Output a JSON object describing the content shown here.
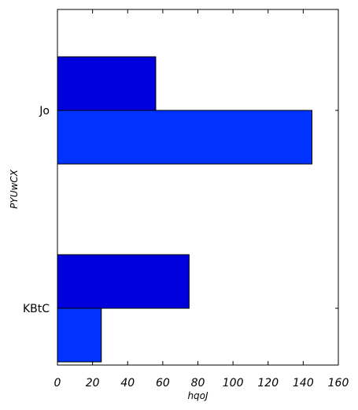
{
  "chart_data": {
    "type": "bar",
    "orientation": "horizontal",
    "title": "",
    "xlabel": "hqoJ",
    "ylabel": "PYUwCX",
    "categories": [
      "KBtC",
      "Jo"
    ],
    "series": [
      {
        "color": "#0033ff",
        "values": [
          25,
          145
        ]
      },
      {
        "color": "#0000dd",
        "values": [
          75,
          56
        ]
      }
    ],
    "xlim": [
      0,
      160
    ],
    "xticks": [
      0,
      20,
      40,
      60,
      80,
      100,
      120,
      140,
      160
    ],
    "xtick_labels": [
      "0",
      "20",
      "40",
      "60",
      "80",
      "100",
      "120",
      "140",
      "160"
    ],
    "grid": false,
    "legend": "none"
  }
}
